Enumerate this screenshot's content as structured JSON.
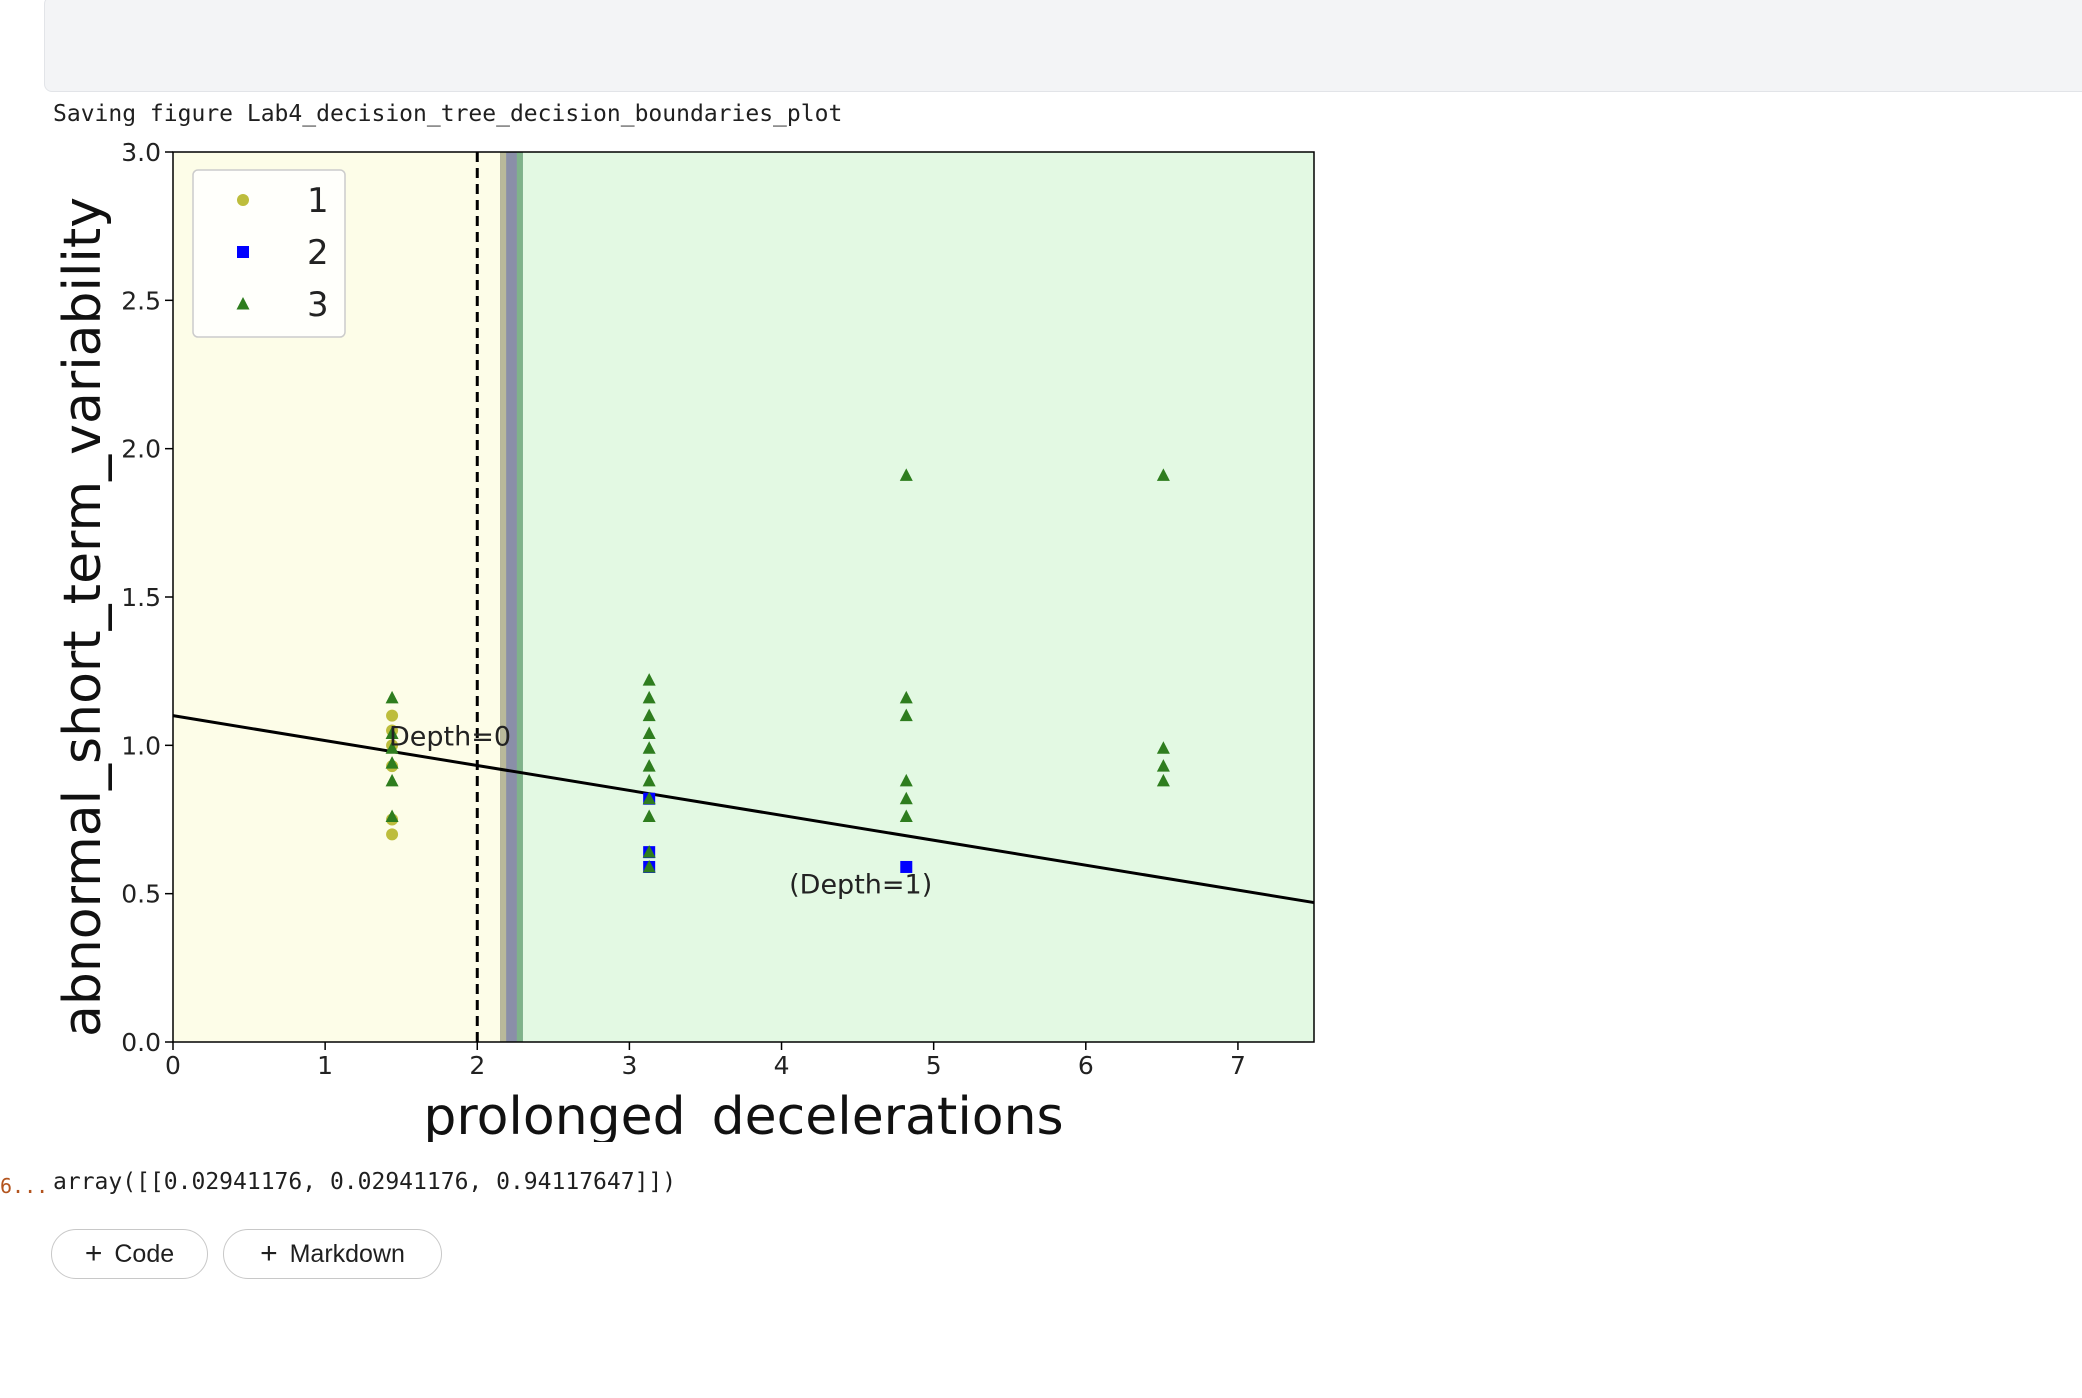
{
  "output": {
    "saving_text": "Saving figure Lab4_decision_tree_decision_boundaries_plot",
    "execution_count": "6...",
    "array_text": "array([[0.02941176, 0.02941176, 0.94117647]])"
  },
  "buttons": {
    "add_code": "Code",
    "add_markdown": "Markdown",
    "plus_glyph": "+"
  },
  "chart_data": {
    "type": "scatter",
    "title": "",
    "xlabel": "prolonged_decelerations",
    "ylabel": "abnormal_short_term_variability",
    "xlim": [
      0,
      7.5
    ],
    "ylim": [
      0,
      3.0
    ],
    "xticks": [
      "0",
      "1",
      "2",
      "3",
      "4",
      "5",
      "6",
      "7"
    ],
    "yticks": [
      "0.0",
      "0.5",
      "1.0",
      "1.5",
      "2.0",
      "2.5",
      "3.0"
    ],
    "grid": false,
    "legend_position": "top-left",
    "regions": [
      {
        "class": "1",
        "x_range": [
          0,
          2.15
        ],
        "color": "#fdfde8"
      },
      {
        "class": "transition",
        "x_range": [
          2.15,
          2.3
        ],
        "color": "#8a8fa8"
      },
      {
        "class": "3",
        "x_range": [
          2.3,
          7.5
        ],
        "color": "#e3f9e3"
      }
    ],
    "series": [
      {
        "name": "1",
        "marker": "circle",
        "color": "#bdbd3c",
        "points": [
          [
            1.44,
            1.1
          ],
          [
            1.44,
            1.05
          ],
          [
            1.44,
            1.0
          ],
          [
            1.44,
            0.93
          ],
          [
            1.44,
            0.75
          ],
          [
            1.44,
            0.7
          ]
        ]
      },
      {
        "name": "2",
        "marker": "square",
        "color": "#0000ff",
        "points": [
          [
            3.13,
            0.82
          ],
          [
            3.13,
            0.64
          ],
          [
            3.13,
            0.59
          ],
          [
            4.82,
            0.59
          ]
        ]
      },
      {
        "name": "3",
        "marker": "triangle",
        "color": "#2e7d1e",
        "points": [
          [
            1.44,
            1.16
          ],
          [
            1.44,
            1.04
          ],
          [
            1.44,
            0.99
          ],
          [
            1.44,
            0.94
          ],
          [
            1.44,
            0.88
          ],
          [
            1.44,
            0.76
          ],
          [
            3.13,
            1.22
          ],
          [
            3.13,
            1.16
          ],
          [
            3.13,
            1.1
          ],
          [
            3.13,
            1.04
          ],
          [
            3.13,
            0.99
          ],
          [
            3.13,
            0.93
          ],
          [
            3.13,
            0.88
          ],
          [
            3.13,
            0.82
          ],
          [
            3.13,
            0.76
          ],
          [
            3.13,
            0.64
          ],
          [
            3.13,
            0.59
          ],
          [
            4.82,
            1.91
          ],
          [
            4.82,
            1.16
          ],
          [
            4.82,
            1.1
          ],
          [
            4.82,
            0.88
          ],
          [
            4.82,
            0.82
          ],
          [
            4.82,
            0.76
          ],
          [
            6.51,
            1.91
          ],
          [
            6.51,
            0.99
          ],
          [
            6.51,
            0.93
          ],
          [
            6.51,
            0.88
          ]
        ]
      }
    ],
    "lines": [
      {
        "name": "depth0-dashed",
        "style": "dashed",
        "color": "#000000",
        "from": [
          2.0,
          0.0
        ],
        "to": [
          2.0,
          3.0
        ]
      },
      {
        "name": "solid-boundary",
        "style": "solid",
        "color": "#000000",
        "from": [
          0,
          1.1
        ],
        "to": [
          7.5,
          0.47
        ]
      }
    ],
    "annotations": [
      {
        "text": "Depth=0",
        "x": 1.42,
        "y": 1.0
      },
      {
        "text": "(Depth=1)",
        "x": 4.05,
        "y": 0.5
      }
    ]
  }
}
